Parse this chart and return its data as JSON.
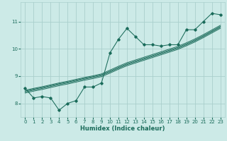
{
  "xlabel": "Humidex (Indice chaleur)",
  "bg_color": "#cceae7",
  "grid_color": "#aacfcc",
  "line_color": "#1a6b5a",
  "xlim": [
    -0.5,
    23.5
  ],
  "ylim": [
    7.5,
    11.7
  ],
  "xticks": [
    0,
    1,
    2,
    3,
    4,
    5,
    6,
    7,
    8,
    9,
    10,
    11,
    12,
    13,
    14,
    15,
    16,
    17,
    18,
    19,
    20,
    21,
    22,
    23
  ],
  "yticks": [
    8,
    9,
    10,
    11
  ],
  "scatter_x": [
    0,
    1,
    2,
    3,
    4,
    5,
    6,
    7,
    8,
    9,
    10,
    11,
    12,
    13,
    14,
    15,
    16,
    17,
    18,
    19,
    20,
    21,
    22,
    23
  ],
  "scatter_y": [
    8.55,
    8.2,
    8.25,
    8.2,
    7.75,
    8.0,
    8.1,
    8.6,
    8.6,
    8.75,
    9.85,
    10.35,
    10.75,
    10.45,
    10.15,
    10.15,
    10.1,
    10.15,
    10.15,
    10.7,
    10.7,
    11.0,
    11.3,
    11.25
  ],
  "reg_lines": [
    [
      8.45,
      8.52,
      8.58,
      8.65,
      8.72,
      8.78,
      8.85,
      8.92,
      8.98,
      9.05,
      9.18,
      9.32,
      9.45,
      9.55,
      9.65,
      9.75,
      9.85,
      9.95,
      10.05,
      10.18,
      10.32,
      10.48,
      10.65,
      10.82
    ],
    [
      8.48,
      8.55,
      8.61,
      8.68,
      8.75,
      8.81,
      8.88,
      8.95,
      9.01,
      9.08,
      9.22,
      9.36,
      9.49,
      9.59,
      9.69,
      9.79,
      9.89,
      9.99,
      10.09,
      10.22,
      10.36,
      10.52,
      10.69,
      10.86
    ],
    [
      8.42,
      8.49,
      8.55,
      8.62,
      8.69,
      8.75,
      8.82,
      8.89,
      8.95,
      9.02,
      9.15,
      9.29,
      9.42,
      9.52,
      9.62,
      9.72,
      9.82,
      9.92,
      10.02,
      10.15,
      10.29,
      10.45,
      10.62,
      10.79
    ],
    [
      8.38,
      8.45,
      8.51,
      8.58,
      8.65,
      8.71,
      8.78,
      8.85,
      8.91,
      8.98,
      9.11,
      9.25,
      9.38,
      9.48,
      9.58,
      9.68,
      9.78,
      9.88,
      9.98,
      10.11,
      10.25,
      10.41,
      10.58,
      10.75
    ]
  ]
}
